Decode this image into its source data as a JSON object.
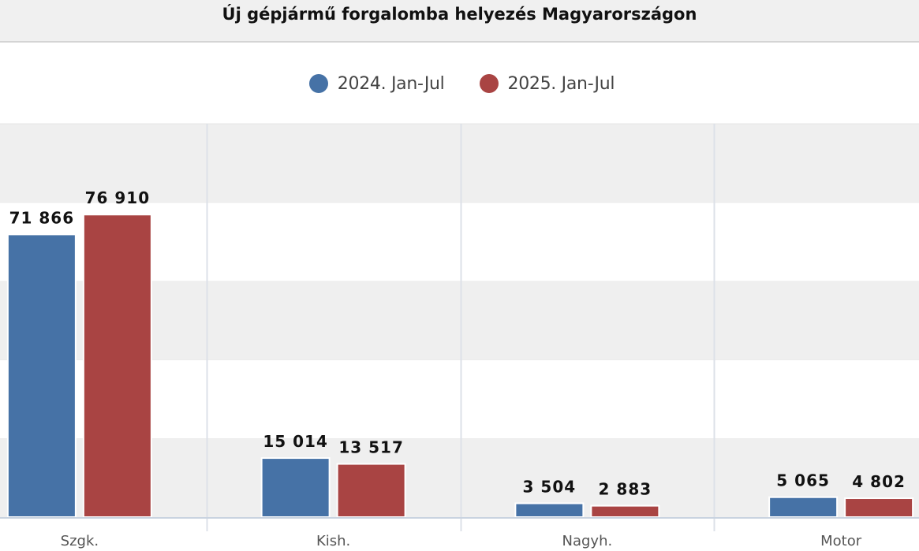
{
  "title": "Új gépjármű forgalomba helyezés Magyarországon",
  "colors": {
    "series_2024": "#4672a6",
    "series_2025": "#a94443",
    "band": "#efefef",
    "grid": "#dde1e8",
    "axis": "#c9d3e0"
  },
  "chart_data": {
    "type": "bar",
    "title": "Új gépjármű forgalomba helyezés Magyarországon",
    "categories": [
      "Szgk.",
      "Kish.",
      "Nagyh.",
      "Motor"
    ],
    "series": [
      {
        "name": "2024. Jan-Jul",
        "values": [
          71866,
          15014,
          3504,
          5065
        ],
        "labels": [
          "71 866",
          "15 014",
          "3 504",
          "5 065"
        ]
      },
      {
        "name": "2025. Jan-Jul",
        "values": [
          76910,
          13517,
          2883,
          4802
        ],
        "labels": [
          "76 910",
          "13 517",
          "2 883",
          "4 802"
        ]
      }
    ],
    "ylim": [
      0,
      100000
    ],
    "grid": true,
    "legend": "top-center",
    "xlabel": "",
    "ylabel": ""
  }
}
